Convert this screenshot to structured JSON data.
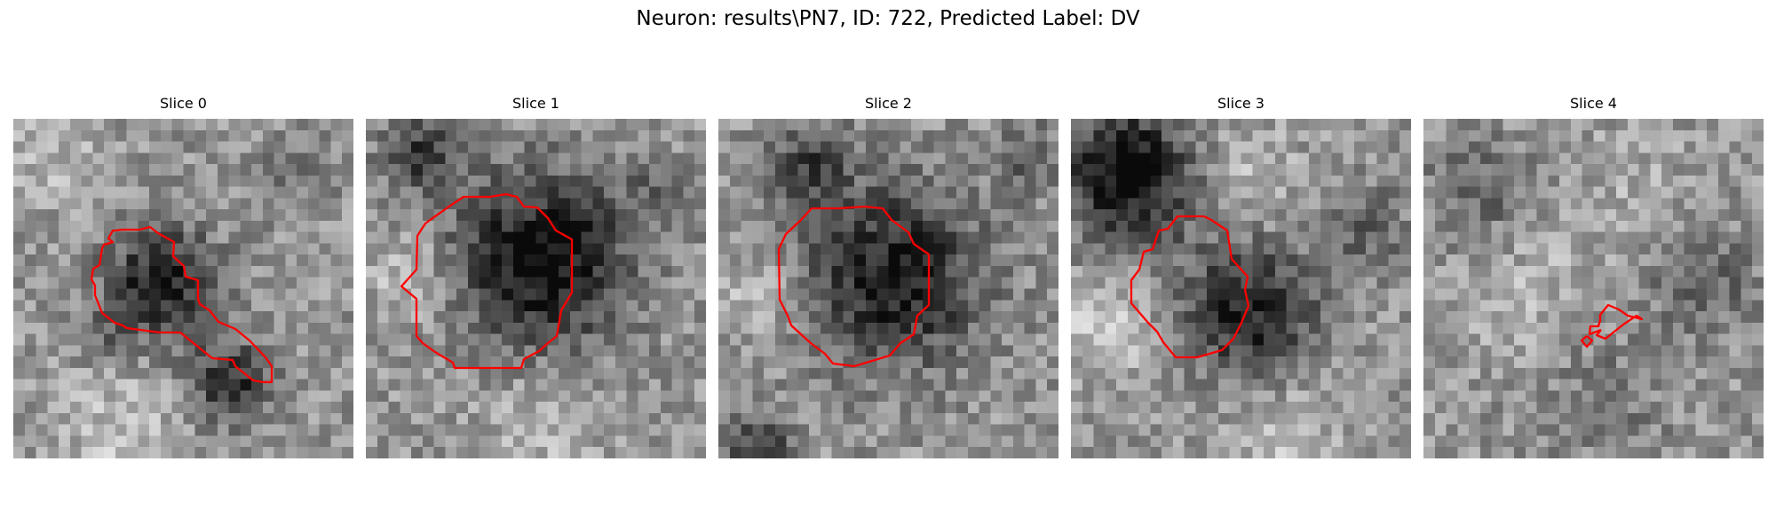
{
  "figure": {
    "title": "Neuron: results\\PN7, ID: 722, Predicted Label: DV"
  },
  "panels": [
    {
      "title": "Slice 0",
      "contour_color": "#ff0000"
    },
    {
      "title": "Slice 1",
      "contour_color": "#ff0000"
    },
    {
      "title": "Slice 2",
      "contour_color": "#ff0000"
    },
    {
      "title": "Slice 3",
      "contour_color": "#ff0000"
    },
    {
      "title": "Slice 4",
      "contour_color": "#ff0000"
    }
  ]
}
